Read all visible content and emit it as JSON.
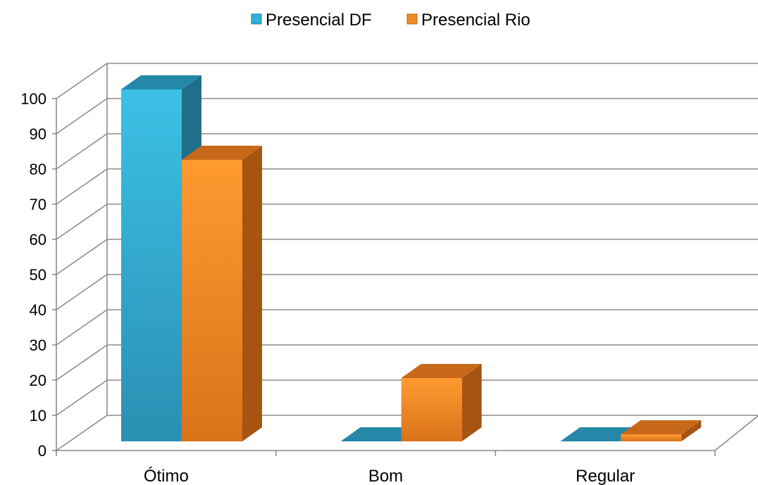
{
  "chart_data": {
    "type": "bar",
    "categories": [
      "Ótimo",
      "Bom",
      "Regular"
    ],
    "series": [
      {
        "name": "Presencial DF",
        "values": [
          100,
          0,
          0
        ],
        "color": "#2fb0d8"
      },
      {
        "name": "Presencial Rio",
        "values": [
          80,
          18,
          2
        ],
        "color": "#f08a24"
      }
    ],
    "ylim": [
      0,
      100
    ],
    "yticks": [
      0,
      10,
      20,
      30,
      40,
      50,
      60,
      70,
      80,
      90,
      100
    ],
    "grid": true,
    "legend": "top-center",
    "style": "3d-clustered"
  }
}
